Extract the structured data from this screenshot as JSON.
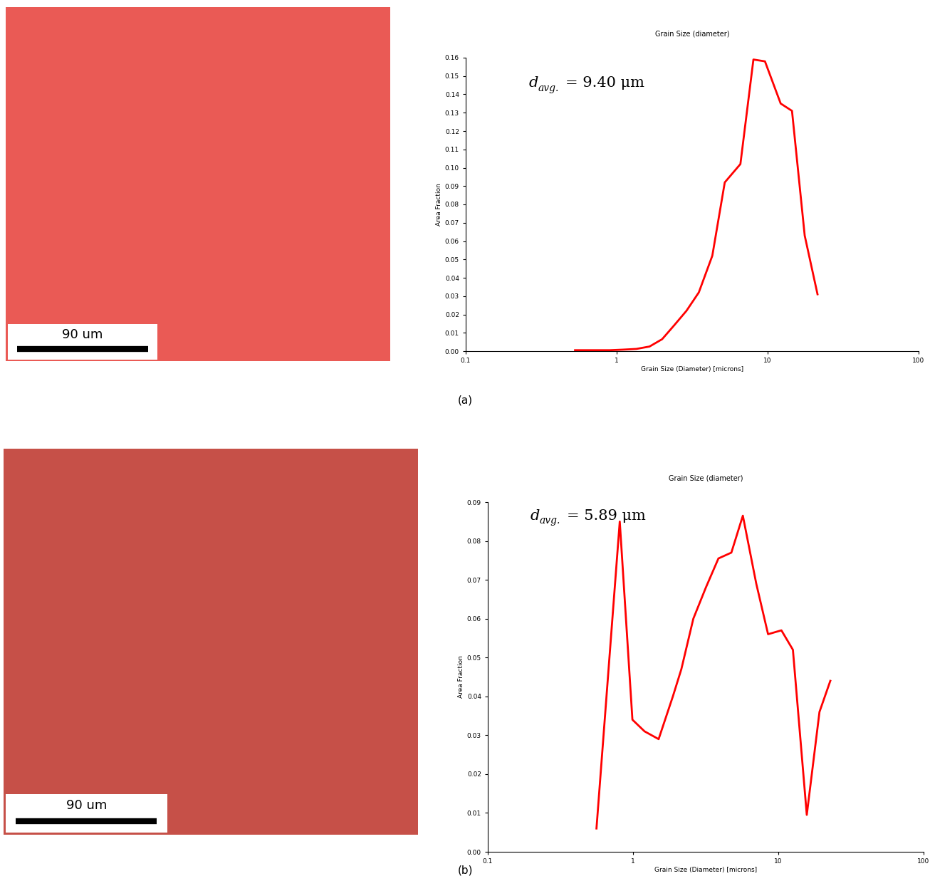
{
  "chart_data": [
    {
      "type": "line",
      "title": "Grain Size (diameter)",
      "x_label": "Grain Size (Diameter) [microns]",
      "y_label": "Area Fraction",
      "annotation": {
        "symbol": "d",
        "subscript": "avg.",
        "text": "= 9.40 μm"
      },
      "x": [
        0.53,
        0.7,
        0.9,
        1.1,
        1.35,
        1.65,
        2.0,
        2.4,
        2.9,
        3.5,
        4.3,
        5.2,
        6.6,
        8.05,
        9.6,
        12.2,
        14.5,
        17.6,
        21.4
      ],
      "values": [
        0.0005,
        0.0005,
        0.0005,
        0.0008,
        0.0012,
        0.0025,
        0.0065,
        0.014,
        0.022,
        0.032,
        0.052,
        0.092,
        0.102,
        0.159,
        0.158,
        0.135,
        0.131,
        0.063,
        0.031
      ],
      "color": "#ff0000",
      "log": "x",
      "xlim": [
        0.1,
        100
      ],
      "xticks": [
        0.1,
        1,
        10,
        100
      ],
      "ylim": [
        0,
        0.16
      ],
      "yticks": [
        {
          "value": 0,
          "label": "0.00"
        },
        {
          "value": 0.01,
          "label": "0.01"
        },
        {
          "value": 0.02,
          "label": "0.02"
        },
        {
          "value": 0.03,
          "label": "0.03"
        },
        {
          "value": 0.04,
          "label": "0.04"
        },
        {
          "value": 0.05,
          "label": "0.05"
        },
        {
          "value": 0.06,
          "label": "0.06"
        },
        {
          "value": 0.07,
          "label": "0.07"
        },
        {
          "value": 0.08,
          "label": "0.08"
        },
        {
          "value": 0.09,
          "label": "0.09"
        },
        {
          "value": 0.1,
          "label": "0.10"
        },
        {
          "value": 0.11,
          "label": "0.11"
        },
        {
          "value": 0.12,
          "label": "0.12"
        },
        {
          "value": 0.13,
          "label": "0.13"
        },
        {
          "value": 0.14,
          "label": "0.14"
        },
        {
          "value": 0.15,
          "label": "0.15"
        },
        {
          "value": 0.16,
          "label": "0.16"
        }
      ]
    },
    {
      "type": "line",
      "title": "Grain Size (diameter)",
      "x_label": "Grain Size (Diameter) [microns]",
      "y_label": "Area Fraction",
      "annotation": {
        "symbol": "d",
        "subscript": "avg.",
        "text": "= 5.89 μm"
      },
      "x": [
        0.56,
        0.81,
        0.99,
        1.2,
        1.5,
        1.88,
        2.15,
        2.6,
        3.17,
        3.87,
        4.75,
        5.7,
        7.05,
        8.5,
        10.5,
        12.6,
        15.7,
        19.2,
        22.8
      ],
      "values": [
        0.006,
        0.085,
        0.034,
        0.031,
        0.029,
        0.04,
        0.047,
        0.06,
        0.068,
        0.0755,
        0.077,
        0.0865,
        0.069,
        0.056,
        0.057,
        0.052,
        0.0095,
        0.036,
        0.044
      ],
      "color": "#ff0000",
      "log": "x",
      "xlim": [
        0.1,
        100
      ],
      "xticks": [
        0.1,
        1,
        10,
        100
      ],
      "ylim": [
        0,
        0.09
      ],
      "yticks": [
        {
          "value": 0,
          "label": "0.00"
        },
        {
          "value": 0.01,
          "label": "0.01"
        },
        {
          "value": 0.02,
          "label": "0.02"
        },
        {
          "value": 0.03,
          "label": "0.03"
        },
        {
          "value": 0.04,
          "label": "0.04"
        },
        {
          "value": 0.05,
          "label": "0.05"
        },
        {
          "value": 0.06,
          "label": "0.06"
        },
        {
          "value": 0.07,
          "label": "0.07"
        },
        {
          "value": 0.08,
          "label": "0.08"
        },
        {
          "value": 0.09,
          "label": "0.09"
        }
      ]
    }
  ],
  "panels": [
    {
      "label": "(a)",
      "scale_bar": "90 um"
    },
    {
      "label": "(b)",
      "scale_bar": "90 um"
    }
  ]
}
